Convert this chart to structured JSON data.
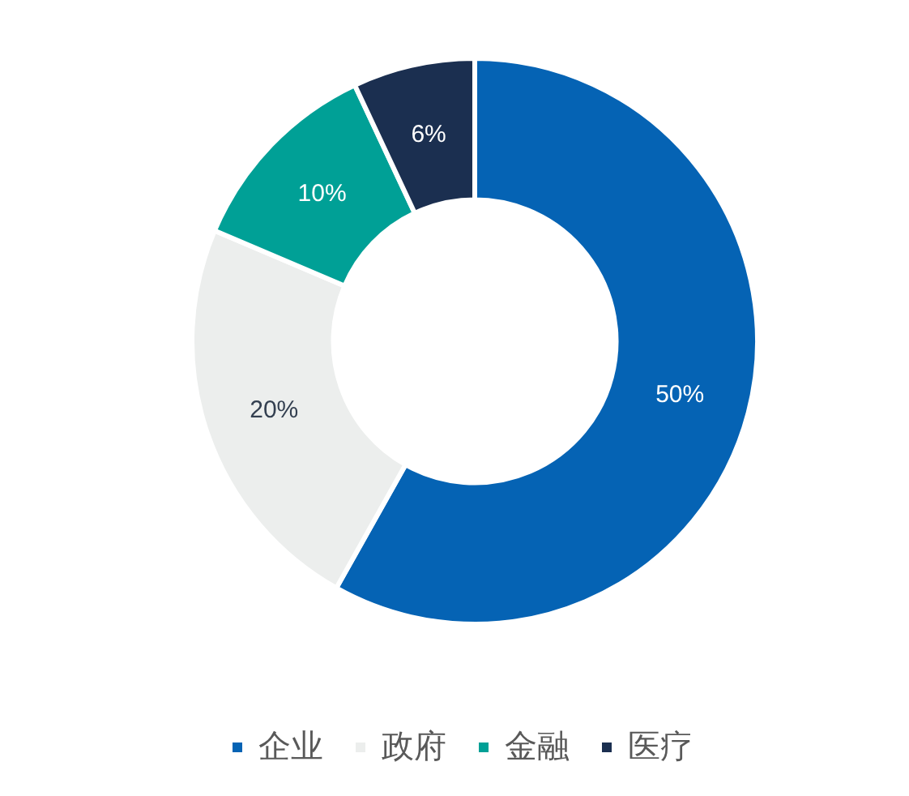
{
  "chart_data": {
    "type": "donut",
    "categories": [
      "企业",
      "政府",
      "金融",
      "医疗"
    ],
    "values": [
      50,
      20,
      10,
      6
    ],
    "value_labels": [
      "50%",
      "20%",
      "10%",
      "6%"
    ],
    "colors": [
      "#0563b4",
      "#eceeed",
      "#00a096",
      "#1b2f50"
    ],
    "legend": "bottom"
  }
}
